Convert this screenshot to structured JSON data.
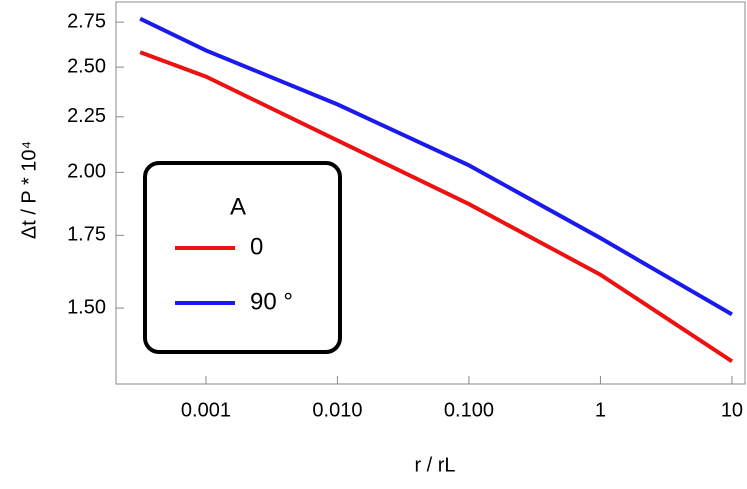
{
  "chart_data": {
    "type": "line",
    "xlabel": "r / rL",
    "ylabel": "Δt / P * 10⁴",
    "x": [
      0.000316,
      0.001,
      0.01,
      0.1,
      1,
      10
    ],
    "series": [
      {
        "name": "0",
        "color": "#ee1111",
        "values": [
          2.58,
          2.45,
          2.14,
          1.87,
          1.61,
          1.34
        ]
      },
      {
        "name": "90 °",
        "color": "#1a1aee",
        "values": [
          2.77,
          2.59,
          2.31,
          2.03,
          1.74,
          1.48
        ]
      }
    ],
    "legend_title": "A",
    "xscale": "log",
    "yscale": "log",
    "xlim": [
      0.000207,
      12.57
    ],
    "ylim": [
      1.277,
      2.87
    ],
    "xticks": [
      0.001,
      {
        "value": 0.01,
        "label": "0.010"
      },
      {
        "value": 0.1,
        "label": "0.100"
      },
      1,
      10
    ],
    "yticks": [
      2.75,
      {
        "value": 2.5,
        "label": "2.50"
      },
      2.25,
      {
        "value": 2,
        "label": "2.00"
      },
      1.75,
      {
        "value": 1.5,
        "label": "1.50"
      }
    ]
  }
}
